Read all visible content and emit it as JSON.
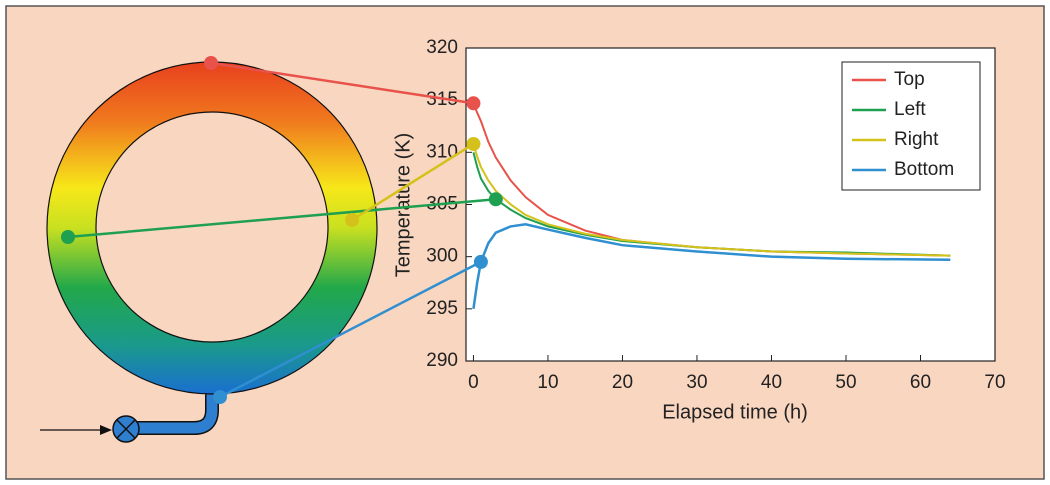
{
  "chart_data": {
    "type": "line",
    "x_label": "Elapsed time (h)",
    "y_label": "Temperature (K)",
    "x": [
      0,
      0.5,
      1,
      2,
      3,
      5,
      7,
      10,
      15,
      20,
      30,
      40,
      50,
      64
    ],
    "series": [
      {
        "name": "Top",
        "color": "#e8524a",
        "values": [
          314.7,
          313.8,
          313,
          311,
          309.5,
          307.3,
          305.7,
          304,
          302.5,
          301.6,
          300.9,
          300.5,
          300.3,
          300.1
        ]
      },
      {
        "name": "Left",
        "color": "#1fa050",
        "values": [
          310,
          308.6,
          307.5,
          306.3,
          305.5,
          304.5,
          303.7,
          302.9,
          302.1,
          301.5,
          300.9,
          300.5,
          300.4,
          300.1
        ]
      },
      {
        "name": "Right",
        "color": "#d4c21a",
        "values": [
          310.8,
          309.6,
          308.6,
          307.3,
          306.3,
          305,
          304,
          303.1,
          302.2,
          301.6,
          300.9,
          300.5,
          300.3,
          300.1
        ]
      },
      {
        "name": "Bottom",
        "color": "#2f8fd0",
        "values": [
          295,
          297.5,
          299.5,
          301.3,
          302.3,
          302.9,
          303.1,
          302.6,
          301.8,
          301.1,
          300.5,
          300,
          299.8,
          299.7
        ]
      }
    ],
    "xlim": [
      -1,
      70
    ],
    "xticks": [
      0,
      10,
      20,
      30,
      40,
      50,
      60,
      70
    ],
    "ylim": [
      290,
      320
    ],
    "yticks": [
      290,
      295,
      300,
      305,
      310,
      315,
      320
    ],
    "legend": "upper right"
  }
}
